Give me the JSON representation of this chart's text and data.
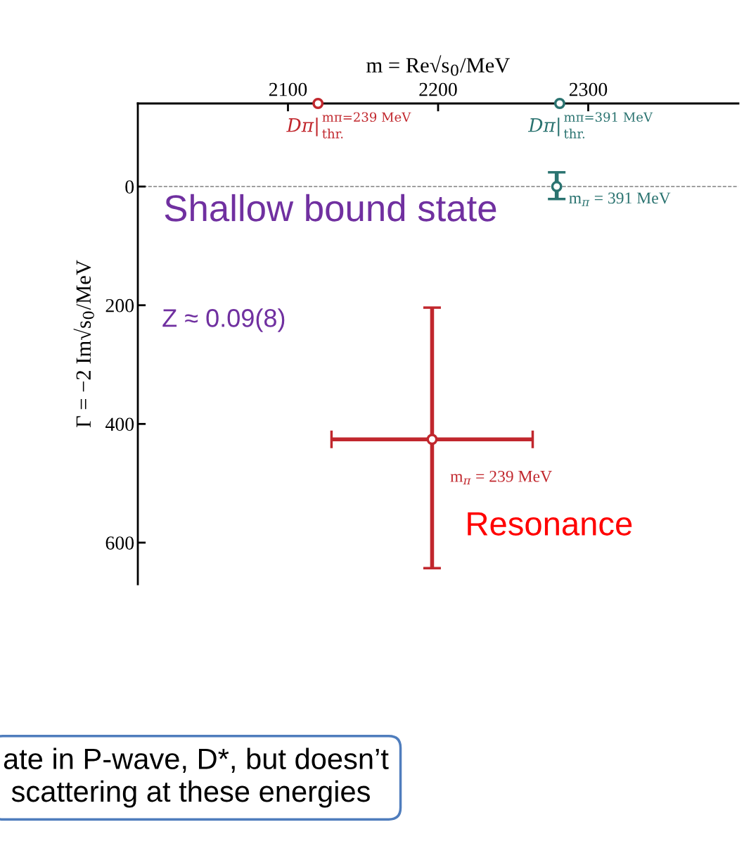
{
  "chart_data": {
    "type": "scatter",
    "xlabel": "m = Re√s$_{0}$/MeV",
    "ylabel": "Γ = −2 Im√s$_{0}$/MeV",
    "xlim": [
      2000,
      2400
    ],
    "xticks": [
      2100,
      2200,
      2300
    ],
    "ylim": [
      670,
      -140
    ],
    "yticks": [
      0,
      200,
      400,
      600
    ],
    "tick_labels": "xy",
    "grid": false,
    "marker": "circle",
    "series": [
      {
        "x": [
          2196
        ],
        "values": [
          426
        ],
        "color": "#c1272d",
        "xerrors": [
          [
            2129,
            2263
          ]
        ],
        "errors": [
          [
            204,
            643
          ]
        ]
      },
      {
        "x": [
          2279
        ],
        "values": [
          0
        ],
        "color": "#2a7370",
        "errors": [
          [
            -24,
            21
          ]
        ]
      },
      {
        "x": [
          2120
        ],
        "values": [
          -140
        ],
        "color": "#c1272d"
      },
      {
        "x": [
          2281
        ],
        "values": [
          -140
        ],
        "color": "#2a7370"
      }
    ],
    "ref_lines": [
      {
        "axis": "y",
        "value": 0,
        "color": "#808080",
        "line_style": "dashed"
      }
    ],
    "annotations": [
      {
        "text": "Dπ|$^{mπ=239 MeV}$$_{thr.}$",
        "x": 2120,
        "y": -140
      },
      {
        "text": "Dπ|$^{mπ=391 MeV}$$_{thr.}$",
        "x": 2281,
        "y": -140
      },
      {
        "text": "m$_{π}$ = 391 MeV",
        "x": 2279,
        "y": 0
      },
      {
        "text": "m$_{π}$ = 239 MeV",
        "x": 2196,
        "y": 426
      },
      {
        "text": "Shallow bound state",
        "x": 2279,
        "y": 0
      },
      "Z ≈ 0.09(8)",
      {
        "text": "Resonance",
        "x": 2196,
        "y": 426
      },
      "ate in P-wave, D*, but doesn’t\n scattering at these energies"
    ]
  }
}
